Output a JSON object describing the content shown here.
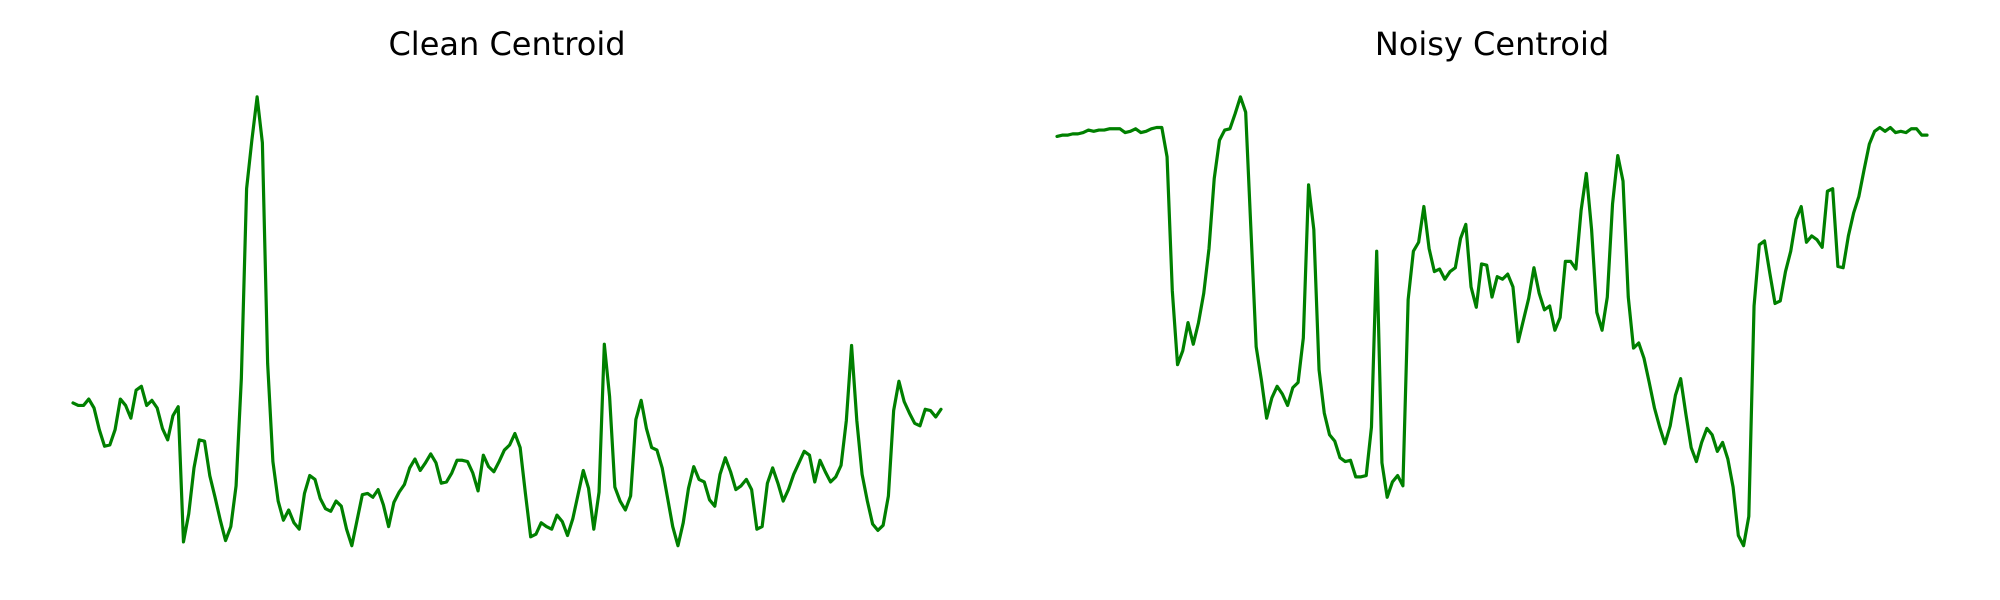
{
  "chart_data": [
    {
      "type": "line",
      "title": "Clean Centroid",
      "ylim": [
        0,
        380
      ],
      "series": [
        {
          "color": "#008000",
          "values": [
            124,
            122,
            122,
            127,
            120,
            103,
            90,
            91,
            103,
            127,
            122,
            112,
            134,
            137,
            122,
            126,
            120,
            104,
            95,
            114,
            121,
            15,
            37,
            73,
            95,
            94,
            67,
            50,
            32,
            16,
            27,
            59,
            143,
            292,
            330,
            364,
            328,
            155,
            78,
            47,
            32,
            40,
            30,
            25,
            53,
            67,
            64,
            49,
            41,
            39,
            47,
            43,
            25,
            12,
            32,
            52,
            53,
            50,
            56,
            44,
            27,
            46,
            54,
            60,
            73,
            80,
            71,
            77,
            84,
            77,
            61,
            62,
            69,
            79,
            79,
            78,
            69,
            55,
            83,
            74,
            70,
            78,
            87,
            91,
            100,
            89,
            53,
            19,
            21,
            30,
            27,
            25,
            36,
            31,
            20,
            33,
            52,
            71,
            57,
            25,
            54,
            170,
            129,
            58,
            47,
            40,
            51,
            111,
            126,
            104,
            89,
            87,
            73,
            50,
            27,
            12,
            30,
            57,
            74,
            64,
            62,
            48,
            43,
            68,
            81,
            70,
            56,
            59,
            64,
            56,
            25,
            27,
            61,
            73,
            61,
            47,
            56,
            68,
            77,
            86,
            83,
            62,
            79,
            70,
            62,
            66,
            75,
            110,
            169,
            110,
            68,
            47,
            29,
            24,
            28,
            51,
            118,
            141,
            125,
            116,
            108,
            106,
            119,
            118,
            113,
            119
          ]
        }
      ]
    },
    {
      "type": "line",
      "title": "Noisy Centroid",
      "ylim": [
        0,
        380
      ],
      "series": [
        {
          "color": "#008000",
          "values": [
            333,
            334,
            334,
            335,
            335,
            336,
            338,
            337,
            338,
            338,
            339,
            339,
            339,
            336,
            337,
            339,
            336,
            337,
            339,
            340,
            340,
            317,
            212,
            154,
            165,
            187,
            170,
            187,
            210,
            245,
            300,
            330,
            338,
            339,
            351,
            364,
            352,
            260,
            168,
            142,
            112,
            128,
            137,
            131,
            122,
            136,
            140,
            175,
            295,
            260,
            150,
            116,
            99,
            94,
            81,
            78,
            79,
            66,
            66,
            67,
            105,
            243,
            77,
            50,
            62,
            67,
            59,
            205,
            243,
            250,
            278,
            245,
            227,
            229,
            221,
            227,
            230,
            253,
            264,
            215,
            199,
            233,
            232,
            207,
            223,
            221,
            225,
            215,
            172,
            189,
            206,
            230,
            210,
            197,
            200,
            181,
            191,
            235,
            235,
            229,
            275,
            304,
            260,
            195,
            181,
            207,
            280,
            318,
            298,
            207,
            167,
            171,
            159,
            140,
            120,
            105,
            92,
            106,
            130,
            143,
            115,
            89,
            78,
            93,
            104,
            99,
            86,
            93,
            80,
            58,
            20,
            12,
            35,
            200,
            248,
            251,
            226,
            202,
            204,
            227,
            243,
            268,
            278,
            250,
            255,
            252,
            246,
            290,
            292,
            231,
            230,
            255,
            273,
            286,
            307,
            327,
            337,
            340,
            337,
            340,
            336,
            337,
            336,
            339,
            339,
            334,
            334
          ]
        }
      ]
    }
  ]
}
